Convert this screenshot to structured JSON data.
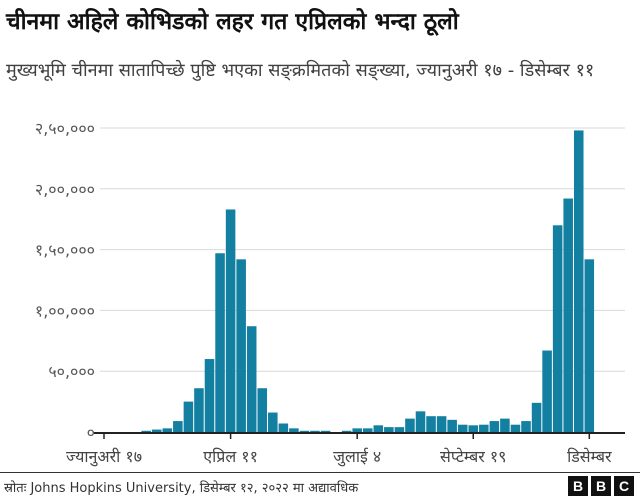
{
  "title": "चीनमा अहिले कोभिडको लहर गत एप्रिलको भन्दा ठूलो",
  "subtitle": "मुख्यभूमि चीनमा सातापिच्छे पुष्टि भएका सङ्क्रमितको सङ्ख्या, ज्यानुअरी १७ - डिसेम्बर ११",
  "source": "स्रोतः Johns Hopkins University, डिसेम्बर १२, २०२२ मा अद्यावधिक",
  "logo": [
    "B",
    "B",
    "C"
  ],
  "chart_data": {
    "type": "bar",
    "color": "#1380a1",
    "ylim": [
      0,
      250000
    ],
    "yticks": [
      0,
      50000,
      100000,
      150000,
      200000,
      250000
    ],
    "ytick_labels": [
      "०",
      "५०,०००",
      "१,००,०००",
      "१,५०,०००",
      "२,००,०००",
      "२,५०,०००"
    ],
    "xtick_labels": [
      {
        "index": 0,
        "label": "ज्यानुअरी १७"
      },
      {
        "index": 12,
        "label": "एप्रिल ११"
      },
      {
        "index": 24,
        "label": "जुलाई ४"
      },
      {
        "index": 35,
        "label": "सेप्टेम्बर १९"
      },
      {
        "index": 46,
        "label": "डिसेम्बर"
      }
    ],
    "values": [
      0,
      0,
      0,
      0,
      1000,
      2000,
      3000,
      9000,
      25000,
      36000,
      60000,
      147000,
      183000,
      142000,
      87000,
      36000,
      16000,
      7000,
      3000,
      1000,
      1000,
      1000,
      0,
      1000,
      3000,
      3000,
      5500,
      4000,
      4000,
      11000,
      17000,
      13000,
      13000,
      10000,
      6000,
      5500,
      6000,
      9000,
      11000,
      6000,
      9000,
      24000,
      67000,
      170000,
      192000,
      248000,
      142000
    ]
  }
}
